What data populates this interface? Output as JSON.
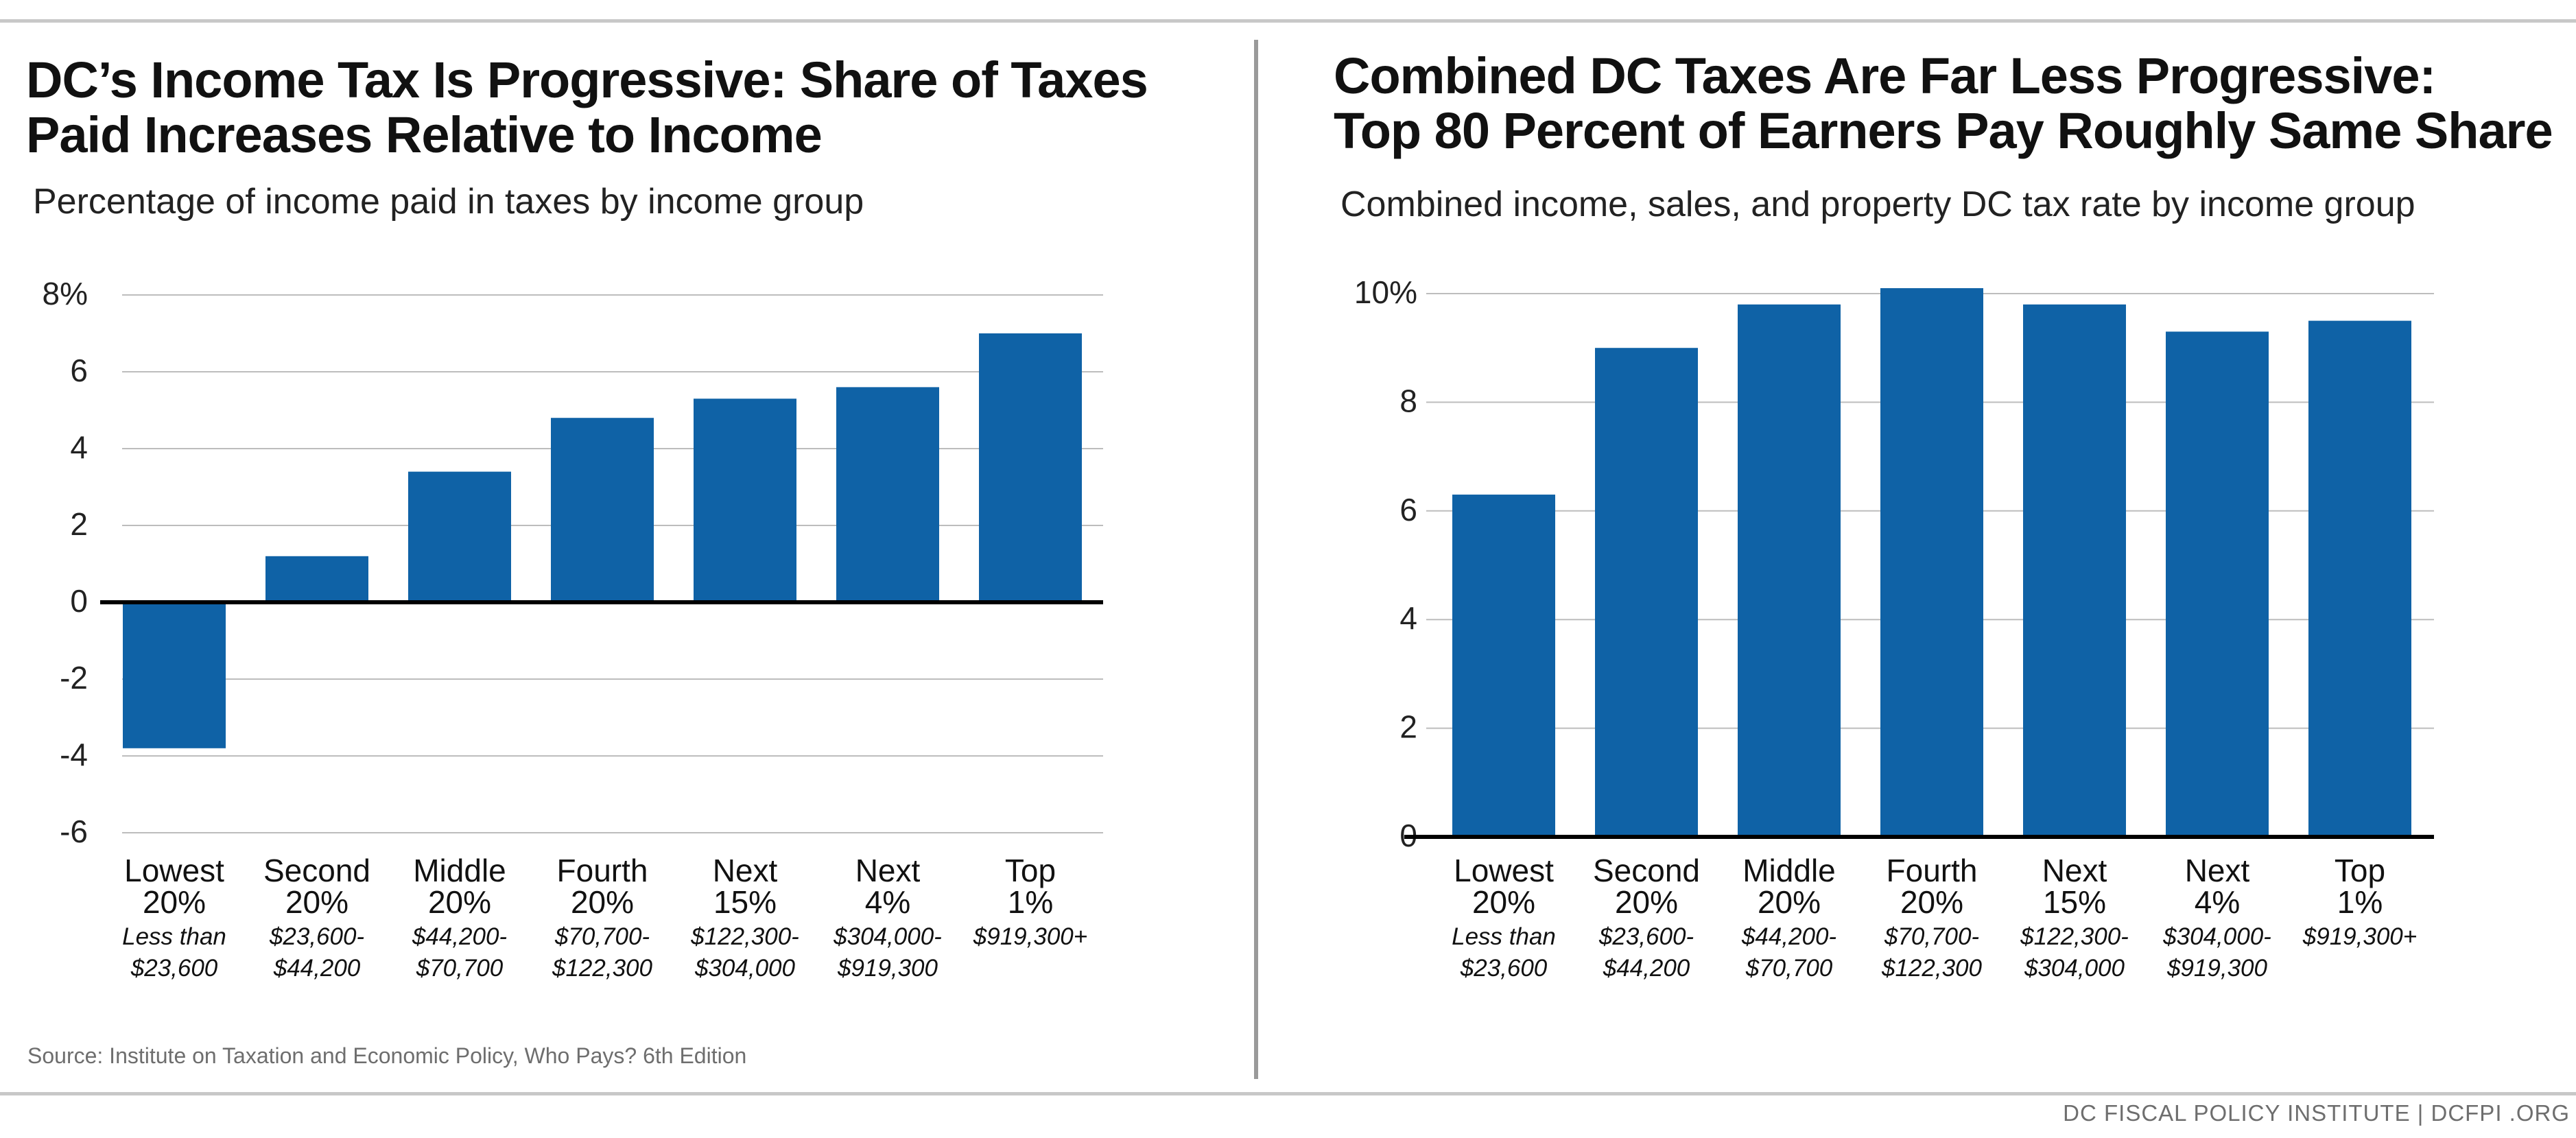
{
  "footer": "DC FISCAL POLICY INSTITUTE  |  DCFPI .ORG",
  "source": "Source: Institute on Taxation and Economic Policy, Who Pays? 6th Edition",
  "colors": {
    "bar": "#0f62a6",
    "grid": "#bdbdbd",
    "axis": "#000000",
    "divider": "#9a9a9a"
  },
  "chart_data": [
    {
      "type": "bar",
      "title": "DC’s Income Tax Is Progressive: Share of Taxes Paid Increases Relative to Income",
      "title_lines": [
        "DC’s Income Tax Is Progressive: Share of Taxes",
        "Paid Increases Relative to Income"
      ],
      "subtitle": "Percentage of income paid in taxes by income group",
      "xlabel": "",
      "ylabel": "",
      "ylim": [
        -6,
        8
      ],
      "yticks": [
        -6,
        -4,
        -2,
        0,
        2,
        4,
        6,
        8
      ],
      "ytick_labels": [
        "-6",
        "-4",
        "-2",
        "0",
        "2",
        "4",
        "6",
        "8%"
      ],
      "grid": true,
      "categories": [
        {
          "label": [
            "Lowest",
            "20%"
          ],
          "range": [
            "Less than",
            "$23,600"
          ]
        },
        {
          "label": [
            "Second",
            "20%"
          ],
          "range": [
            "$23,600-",
            "$44,200"
          ]
        },
        {
          "label": [
            "Middle",
            "20%"
          ],
          "range": [
            "$44,200-",
            "$70,700"
          ]
        },
        {
          "label": [
            "Fourth",
            "20%"
          ],
          "range": [
            "$70,700-",
            "$122,300"
          ]
        },
        {
          "label": [
            "Next",
            "15%"
          ],
          "range": [
            "$122,300-",
            "$304,000"
          ]
        },
        {
          "label": [
            "Next",
            "4%"
          ],
          "range": [
            "$304,000-",
            "$919,300"
          ]
        },
        {
          "label": [
            "Top",
            "1%"
          ],
          "range": [
            "$919,300+"
          ]
        }
      ],
      "values": [
        -3.8,
        1.2,
        3.4,
        4.8,
        5.3,
        5.6,
        7.0
      ]
    },
    {
      "type": "bar",
      "title": "Combined DC Taxes Are Far Less Progressive: Top 80 Percent of Earners Pay Roughly Same Share",
      "title_lines": [
        "Combined DC Taxes Are Far Less Progressive:",
        "Top 80 Percent of Earners Pay Roughly Same Share"
      ],
      "subtitle": "Combined income, sales, and property DC tax rate by income group",
      "xlabel": "",
      "ylabel": "",
      "ylim": [
        0,
        10
      ],
      "yticks": [
        0,
        2,
        4,
        6,
        8,
        10
      ],
      "ytick_labels": [
        "0",
        "2",
        "4",
        "6",
        "8",
        "10%"
      ],
      "grid": true,
      "categories": [
        {
          "label": [
            "Lowest",
            "20%"
          ],
          "range": [
            "Less than",
            "$23,600"
          ]
        },
        {
          "label": [
            "Second",
            "20%"
          ],
          "range": [
            "$23,600-",
            "$44,200"
          ]
        },
        {
          "label": [
            "Middle",
            "20%"
          ],
          "range": [
            "$44,200-",
            "$70,700"
          ]
        },
        {
          "label": [
            "Fourth",
            "20%"
          ],
          "range": [
            "$70,700-",
            "$122,300"
          ]
        },
        {
          "label": [
            "Next",
            "15%"
          ],
          "range": [
            "$122,300-",
            "$304,000"
          ]
        },
        {
          "label": [
            "Next",
            "4%"
          ],
          "range": [
            "$304,000-",
            "$919,300"
          ]
        },
        {
          "label": [
            "Top",
            "1%"
          ],
          "range": [
            "$919,300+"
          ]
        }
      ],
      "values": [
        6.3,
        9.0,
        9.8,
        10.1,
        9.8,
        9.3,
        9.5
      ]
    }
  ]
}
